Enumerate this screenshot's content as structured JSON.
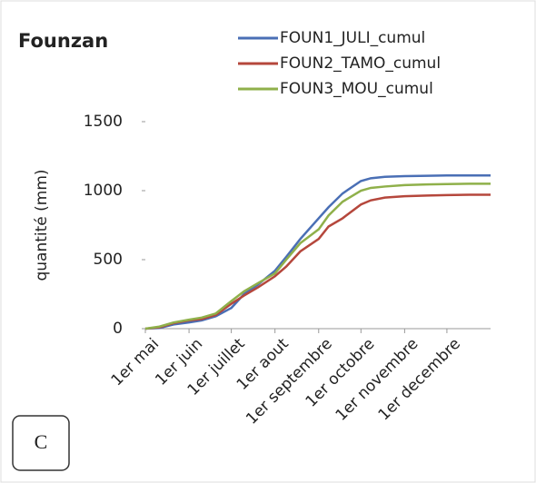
{
  "chart_data": {
    "type": "line",
    "title": "Founzan",
    "ylabel": "quantité (mm)",
    "annotation": "C",
    "x": [
      0,
      10,
      20,
      31,
      40,
      50,
      61,
      70,
      80,
      92,
      100,
      110,
      123,
      130,
      140,
      153,
      160,
      170,
      184,
      200,
      214,
      230,
      245
    ],
    "series": [
      {
        "name": "FOUN1_JULI_cumul",
        "color": "#4a6fb5",
        "values": [
          0,
          5,
          30,
          45,
          60,
          90,
          150,
          250,
          320,
          420,
          520,
          650,
          800,
          880,
          980,
          1070,
          1090,
          1100,
          1105,
          1108,
          1110,
          1110,
          1110
        ]
      },
      {
        "name": "FOUN2_TAMO_cumul",
        "color": "#b5473c",
        "values": [
          0,
          10,
          40,
          60,
          70,
          100,
          180,
          240,
          300,
          380,
          450,
          560,
          650,
          740,
          800,
          900,
          930,
          950,
          960,
          965,
          968,
          970,
          970
        ]
      },
      {
        "name": "FOUN3_MOU_cumul",
        "color": "#8fb04a",
        "values": [
          0,
          15,
          45,
          65,
          80,
          110,
          200,
          270,
          330,
          400,
          500,
          620,
          720,
          820,
          920,
          1000,
          1020,
          1030,
          1040,
          1045,
          1048,
          1050,
          1050
        ]
      }
    ],
    "xlim": [
      0,
      245
    ],
    "xticks": [
      {
        "value": 0,
        "label": "1er mai"
      },
      {
        "value": 31,
        "label": "1er juin"
      },
      {
        "value": 61,
        "label": "1er juillet"
      },
      {
        "value": 92,
        "label": "1er aout"
      },
      {
        "value": 123,
        "label": "1er septembre"
      },
      {
        "value": 153,
        "label": "1er octobre"
      },
      {
        "value": 184,
        "label": "1er novembre"
      },
      {
        "value": 214,
        "label": "1er decembre"
      }
    ],
    "ylim": [
      0,
      1500
    ],
    "yticks": [
      0,
      500,
      1000,
      1500
    ],
    "grid": false
  }
}
